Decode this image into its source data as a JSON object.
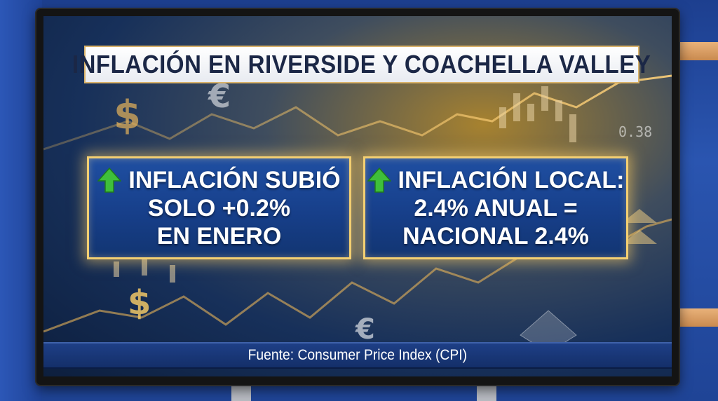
{
  "title": "INFLACIÓN EN RIVERSIDE Y COACHELLA VALLEY",
  "panels": [
    {
      "icon": "green-up-arrow-icon",
      "lines": [
        "INFLACIÓN SUBIÓ",
        "SOLO +0.2%",
        "EN ENERO"
      ]
    },
    {
      "icon": "green-up-arrow-icon",
      "lines": [
        "INFLACIÓN LOCAL:",
        "2.4% ANUAL =",
        "NACIONAL 2.4%"
      ]
    }
  ],
  "source": "Fuente: Consumer Price Index (CPI)",
  "background_ticker": "0.38",
  "colors": {
    "accent_gold": "#f3cf72",
    "panel_blue": "#173f8a",
    "arrow_green": "#3fbf3a",
    "title_text": "#1b2746"
  }
}
